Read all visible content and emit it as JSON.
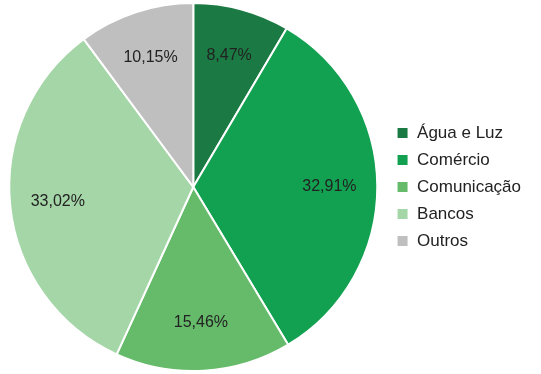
{
  "chart_data": {
    "type": "pie",
    "categories": [
      "Água e Luz",
      "Comércio",
      "Comunicação",
      "Bancos",
      "Outros"
    ],
    "values": [
      8.47,
      32.91,
      15.46,
      33.02,
      10.15
    ],
    "value_labels": [
      "8,47%",
      "32,91%",
      "15,46%",
      "33,02%",
      "10,15%"
    ],
    "colors": [
      "#1b7a43",
      "#12a150",
      "#66bb6a",
      "#a5d6a7",
      "#bfbfbf"
    ],
    "legend": "right",
    "data_labels": true
  }
}
